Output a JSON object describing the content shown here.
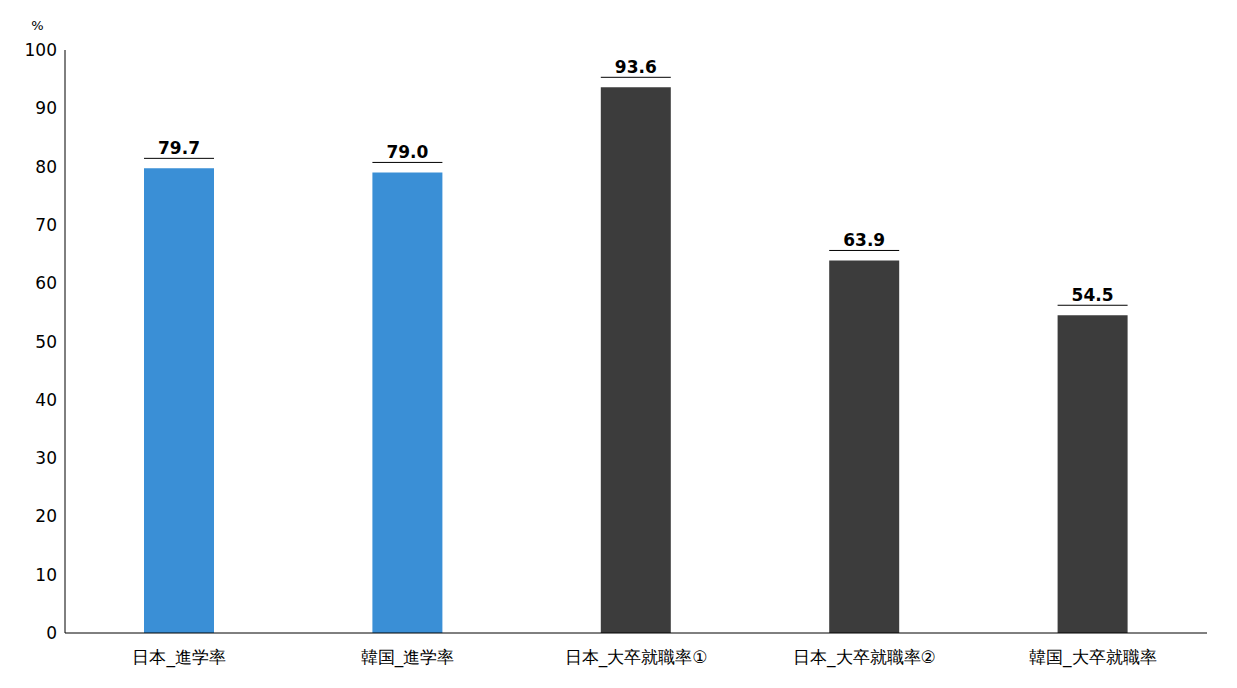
{
  "chart_data": {
    "type": "bar",
    "y_label": "%",
    "categories": [
      "日本_進学率",
      "韓国_進学率",
      "日本_大卒就職率①",
      "日本_大卒就職率②",
      "韓国_大卒就職率"
    ],
    "values": [
      79.7,
      79.0,
      93.6,
      63.9,
      54.5
    ],
    "value_labels": [
      "79.7",
      "79.0",
      "93.6",
      "63.9",
      "54.5"
    ],
    "colors": [
      "#3a8fd6",
      "#3a8fd6",
      "#3c3c3c",
      "#3c3c3c",
      "#3c3c3c"
    ],
    "ylim": [
      0,
      100
    ],
    "yticks": [
      0,
      10,
      20,
      30,
      40,
      50,
      60,
      70,
      80,
      90,
      100
    ],
    "grid": false,
    "data_labels": true
  }
}
